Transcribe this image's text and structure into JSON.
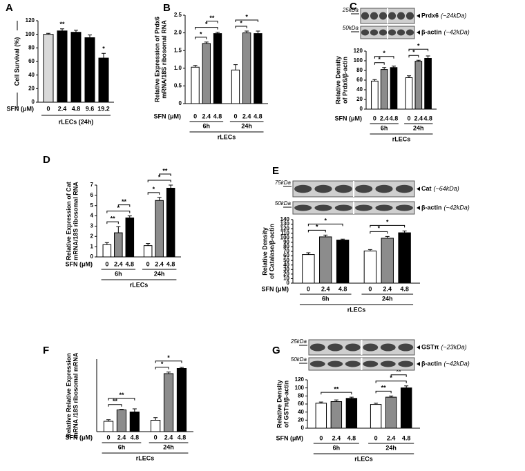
{
  "chart_data": [
    {
      "type": "bar",
      "panel": "A",
      "ylabel": [
        "Cell Survival (%)"
      ],
      "ylim": [
        0,
        120
      ],
      "yticks": [
        0,
        20,
        40,
        60,
        80,
        100,
        120
      ],
      "categories": [
        "0",
        "2.4",
        "4.8",
        "9.6",
        "19.2"
      ],
      "values": [
        100,
        105,
        103,
        95,
        65
      ],
      "errors": [
        1.5,
        3,
        3,
        4,
        7
      ],
      "colors": [
        "#d9d9d9",
        "#000000",
        "#000000",
        "#000000",
        "#000000"
      ],
      "xlabel": "SFN (μM)",
      "footer": "rLECs (24h)",
      "annotations": [
        {
          "index": 1,
          "label": "**"
        },
        {
          "index": 4,
          "label": "*"
        }
      ]
    },
    {
      "type": "bar",
      "panel": "B",
      "ylabel": [
        "Relative Expression of Prdx6",
        "mRNA/18S ribosomal RNA"
      ],
      "ylim": [
        0,
        2.5
      ],
      "yticks": [
        0,
        0.5,
        {
          "value": 1,
          "label": "1.0"
        },
        1.5,
        {
          "value": 2,
          "label": "2.0"
        },
        2.5
      ],
      "categories": [
        "0",
        "2.4",
        "4.8",
        "0",
        "2.4",
        "4.8"
      ],
      "values": [
        1.03,
        1.7,
        1.98,
        0.95,
        2.0,
        1.98
      ],
      "errors": [
        0.05,
        0.04,
        0.04,
        0.15,
        0.05,
        0.07
      ],
      "colors": [
        "#ffffff",
        "#8c8c8c",
        "#000000",
        "#ffffff",
        "#8c8c8c",
        "#000000"
      ],
      "xlabel": "SFN (μM)",
      "groups": [
        "6h",
        "24h"
      ],
      "footer": "rLECs",
      "brackets": [
        {
          "bars": [
            0,
            1
          ],
          "label": "*"
        },
        {
          "bars": [
            0,
            2
          ],
          "label": "*"
        },
        {
          "bars": [
            1,
            2
          ],
          "label": "**"
        },
        {
          "bars": [
            3,
            4
          ],
          "label": "*"
        },
        {
          "bars": [
            3,
            5
          ],
          "label": "*"
        }
      ]
    },
    {
      "type": "bar",
      "panel": "C",
      "ylabel": [
        "Relative Density",
        "of Prdx6/β-actin"
      ],
      "ylim": [
        0,
        120
      ],
      "yticks": [
        0,
        20,
        40,
        60,
        80,
        100,
        120
      ],
      "categories": [
        "0",
        "2.4",
        "4.8",
        "0",
        "2.4",
        "4.8"
      ],
      "values": [
        58,
        82,
        86,
        65,
        99,
        105
      ],
      "errors": [
        3,
        4,
        3,
        4,
        2,
        5
      ],
      "colors": [
        "#ffffff",
        "#8c8c8c",
        "#000000",
        "#ffffff",
        "#8c8c8c",
        "#000000"
      ],
      "xlabel": "SFN (μM)",
      "groups": [
        "6h",
        "24h"
      ],
      "footer": "rLECs",
      "brackets": [
        {
          "bars": [
            0,
            1
          ],
          "label": "*"
        },
        {
          "bars": [
            0,
            2
          ],
          "label": "*"
        },
        {
          "bars": [
            3,
            4
          ],
          "label": "*"
        },
        {
          "bars": [
            3,
            5
          ],
          "label": "*"
        }
      ],
      "blot": {
        "marker_top": "25kDa",
        "band_top": "Prdx6",
        "size_top": "(~24kDa)",
        "marker_bottom": "50kDa",
        "band_bottom": "β-actin",
        "size_bottom": "(~42kDa)"
      }
    },
    {
      "type": "bar",
      "panel": "D",
      "ylabel": [
        "Relative Expression of Cat",
        "mRNA/18S ribosomal RNA"
      ],
      "ylim": [
        0,
        7
      ],
      "yticks": [
        0,
        1,
        2,
        3,
        4,
        5,
        6,
        7
      ],
      "categories": [
        "0",
        "2.4",
        "4.8",
        "0",
        "2.4",
        "4.8"
      ],
      "values": [
        1.2,
        2.35,
        3.8,
        1.1,
        5.5,
        6.7
      ],
      "errors": [
        0.2,
        0.6,
        0.2,
        0.2,
        0.3,
        0.3
      ],
      "colors": [
        "#ffffff",
        "#8c8c8c",
        "#000000",
        "#ffffff",
        "#8c8c8c",
        "#000000"
      ],
      "xlabel": "SFN (μM)",
      "groups": [
        "6h",
        "24h"
      ],
      "footer": "rLECs",
      "brackets": [
        {
          "bars": [
            0,
            1
          ],
          "label": "**"
        },
        {
          "bars": [
            0,
            2
          ],
          "label": "*"
        },
        {
          "bars": [
            1,
            2
          ],
          "label": "**"
        },
        {
          "bars": [
            3,
            4
          ],
          "label": "*"
        },
        {
          "bars": [
            3,
            5
          ],
          "label": "*"
        },
        {
          "bars": [
            4,
            5
          ],
          "label": "**"
        }
      ]
    },
    {
      "type": "bar",
      "panel": "E",
      "ylabel": [
        "Relative Density",
        "of Catalase/β-actin"
      ],
      "ylim": [
        0,
        140
      ],
      "yticks": [
        0,
        10,
        20,
        30,
        40,
        50,
        60,
        70,
        80,
        90,
        100,
        110,
        120,
        130,
        140
      ],
      "categories": [
        "0",
        "2.4",
        "4.8",
        "0",
        "2.4",
        "4.8"
      ],
      "values": [
        63,
        102,
        95,
        71,
        99,
        111
      ],
      "errors": [
        4,
        4,
        2,
        3,
        4,
        4
      ],
      "colors": [
        "#ffffff",
        "#8c8c8c",
        "#000000",
        "#ffffff",
        "#8c8c8c",
        "#000000"
      ],
      "xlabel": "SFN (μM)",
      "groups": [
        "6h",
        "24h"
      ],
      "footer": "rLECs",
      "brackets": [
        {
          "bars": [
            0,
            1
          ],
          "label": "*"
        },
        {
          "bars": [
            0,
            2
          ],
          "label": "*"
        },
        {
          "bars": [
            3,
            4
          ],
          "label": "*"
        },
        {
          "bars": [
            3,
            5
          ],
          "label": "*"
        }
      ],
      "blot": {
        "marker_top": "75kDa",
        "band_top": "Cat",
        "size_top": "(~64kDa)",
        "marker_bottom": "50kDa",
        "band_bottom": "β-actin",
        "size_bottom": "(~42kDa)"
      }
    },
    {
      "type": "bar",
      "panel": "F",
      "ylabel": [
        "Relative Relative Expression",
        "mRNA /18S ribosomal mRNA"
      ],
      "ylim": [
        0,
        7
      ],
      "categories": [
        "0",
        "2.4",
        "4.8",
        "0",
        "2.4",
        "4.8"
      ],
      "values": [
        1.0,
        2.1,
        1.9,
        1.1,
        5.6,
        6.1
      ],
      "errors": [
        0.15,
        0.05,
        0.3,
        0.25,
        0.15,
        0.1
      ],
      "colors": [
        "#ffffff",
        "#8c8c8c",
        "#000000",
        "#ffffff",
        "#8c8c8c",
        "#000000"
      ],
      "xlabel": "SFN (μM)",
      "groups": [
        "6h",
        "24h"
      ],
      "footer": "rLECs",
      "brackets": [
        {
          "bars": [
            0,
            1
          ],
          "label": "**"
        },
        {
          "bars": [
            0,
            2
          ],
          "label": "**"
        },
        {
          "bars": [
            3,
            4
          ],
          "label": "*"
        },
        {
          "bars": [
            3,
            5
          ],
          "label": "*"
        }
      ]
    },
    {
      "type": "bar",
      "panel": "G",
      "ylabel": [
        "Relative Density",
        "of GSTπ/β-actin"
      ],
      "ylim": [
        0,
        120
      ],
      "yticks": [
        0,
        20,
        40,
        60,
        80,
        100,
        120
      ],
      "categories": [
        "0",
        "2.4",
        "4.8",
        "0",
        "2.4",
        "4.8"
      ],
      "values": [
        62,
        66,
        74,
        59,
        77,
        100
      ],
      "errors": [
        3,
        4,
        3,
        3,
        3,
        5
      ],
      "colors": [
        "#ffffff",
        "#8c8c8c",
        "#000000",
        "#ffffff",
        "#8c8c8c",
        "#000000"
      ],
      "xlabel": "SFN (μM)",
      "groups": [
        "6h",
        "24h"
      ],
      "footer": "rLECs",
      "brackets": [
        {
          "bars": [
            0,
            2
          ],
          "label": "**"
        },
        {
          "bars": [
            3,
            4
          ],
          "label": "**"
        },
        {
          "bars": [
            3,
            5
          ],
          "label": "*"
        },
        {
          "bars": [
            4,
            5
          ],
          "label": "**"
        }
      ],
      "blot": {
        "marker_top": "25kDa",
        "band_top": "GSTπ",
        "size_top": "(~23kDa)",
        "marker_bottom": "50kDa",
        "band_bottom": "β-actin",
        "size_bottom": "(~42kDa)"
      }
    }
  ]
}
